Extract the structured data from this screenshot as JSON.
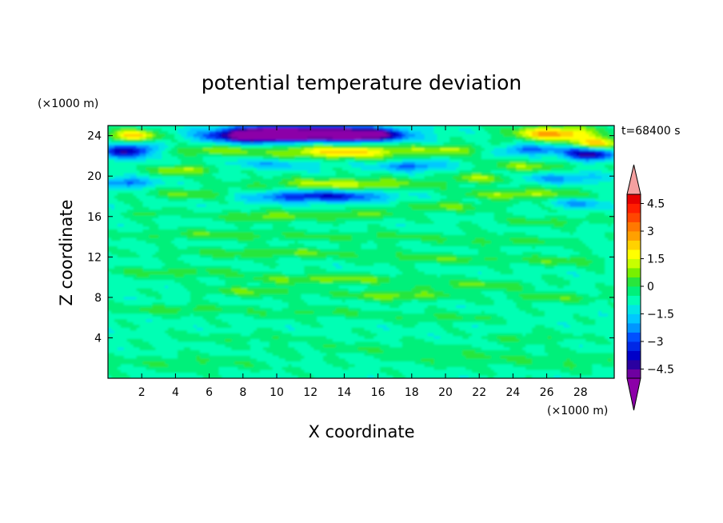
{
  "chart_data": {
    "type": "heatmap",
    "title": "potential temperature deviation",
    "xlabel": "X coordinate",
    "ylabel": "Z coordinate",
    "x_unit": "(×1000 m)",
    "y_unit": "(×1000 m)",
    "time_label": "t=68400 s",
    "xlim": [
      0,
      30
    ],
    "ylim": [
      0,
      25
    ],
    "x_ticks": [
      2,
      4,
      6,
      8,
      10,
      12,
      14,
      16,
      18,
      20,
      22,
      24,
      26,
      28
    ],
    "y_ticks": [
      4,
      8,
      12,
      16,
      20,
      24
    ],
    "colorbar": {
      "levels": [
        -5.0,
        -4.5,
        -4.0,
        -3.5,
        -3.0,
        -2.5,
        -2.0,
        -1.5,
        -1.0,
        -0.5,
        0,
        0.5,
        1.0,
        1.5,
        2.0,
        2.5,
        3.0,
        3.5,
        4.0,
        4.5,
        5.0
      ],
      "tick_labels": [
        "4.5",
        "3",
        "1.5",
        "0",
        "−1.5",
        "−3",
        "−4.5"
      ],
      "tick_values": [
        4.5,
        3,
        1.5,
        0,
        -1.5,
        -3,
        -4.5
      ],
      "colors": [
        "#6e00a0",
        "#2a00a0",
        "#0000c8",
        "#0028e6",
        "#0050ff",
        "#0096ff",
        "#00c8ff",
        "#00e6e6",
        "#00ffb4",
        "#00f07a",
        "#28e63c",
        "#78f000",
        "#c8ff00",
        "#ffff00",
        "#ffd200",
        "#ffa000",
        "#ff7800",
        "#ff4600",
        "#ff1e00",
        "#e60000"
      ],
      "under_color": "#8c00a8",
      "over_color": "#f5a0a0"
    }
  }
}
